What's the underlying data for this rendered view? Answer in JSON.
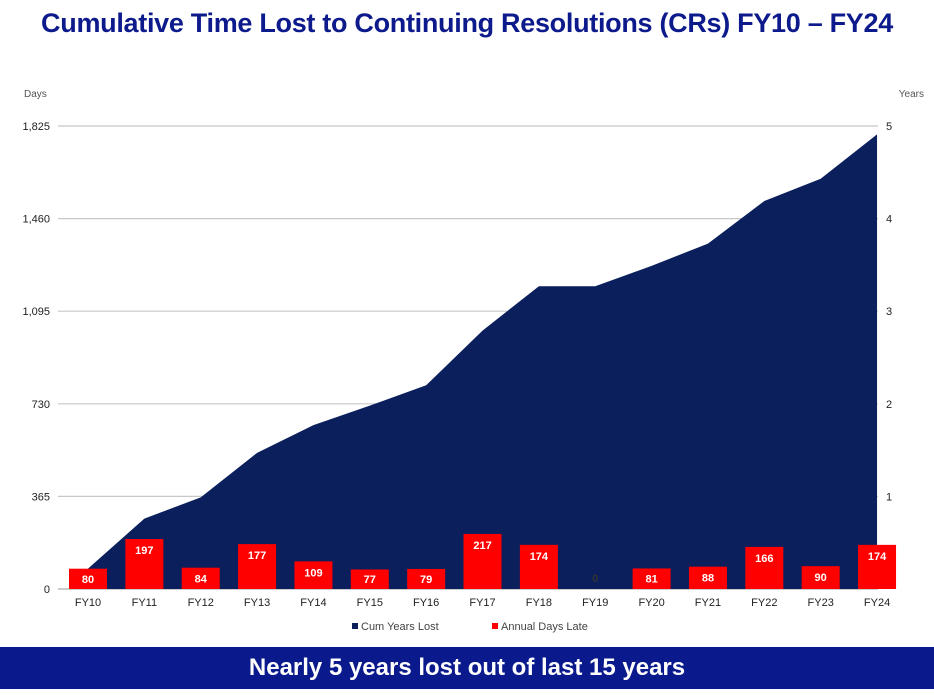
{
  "title": "Cumulative Time Lost to Continuing Resolutions (CRs) FY10 – FY24",
  "banner": "Nearly 5 years lost out of last 15 years",
  "colors": {
    "area": "#0a1f5c",
    "bar": "#ff0000",
    "title": "#0d1a8c",
    "banner": "#0a1a8c",
    "grid": "#c8c8c8"
  },
  "chart_data": {
    "type": "bar+area",
    "title": "Cumulative Time Lost to Continuing Resolutions (CRs) FY10 – FY24",
    "categories": [
      "FY10",
      "FY11",
      "FY12",
      "FY13",
      "FY14",
      "FY15",
      "FY16",
      "FY17",
      "FY18",
      "FY19",
      "FY20",
      "FY21",
      "FY22",
      "FY23",
      "FY24"
    ],
    "y_left_label": "Days",
    "y_right_label": "Years",
    "y_left_ticks": [
      "1,825",
      "1,460",
      "1,095",
      "730",
      "365",
      "0"
    ],
    "y_right_ticks": [
      "5",
      "4",
      "3",
      "2",
      "1"
    ],
    "ylim_days": [
      0,
      1825
    ],
    "series": [
      {
        "name": "Cum Years Lost",
        "type": "area",
        "axis": "right",
        "values": [
          0.22,
          0.76,
          0.99,
          1.47,
          1.77,
          1.98,
          2.2,
          2.79,
          3.27,
          3.27,
          3.49,
          3.73,
          4.19,
          4.43,
          4.91
        ]
      },
      {
        "name": "Annual Days Late",
        "type": "bar",
        "axis": "left",
        "values": [
          80,
          197,
          84,
          177,
          109,
          77,
          79,
          217,
          174,
          0,
          81,
          88,
          166,
          90,
          174
        ]
      }
    ]
  }
}
